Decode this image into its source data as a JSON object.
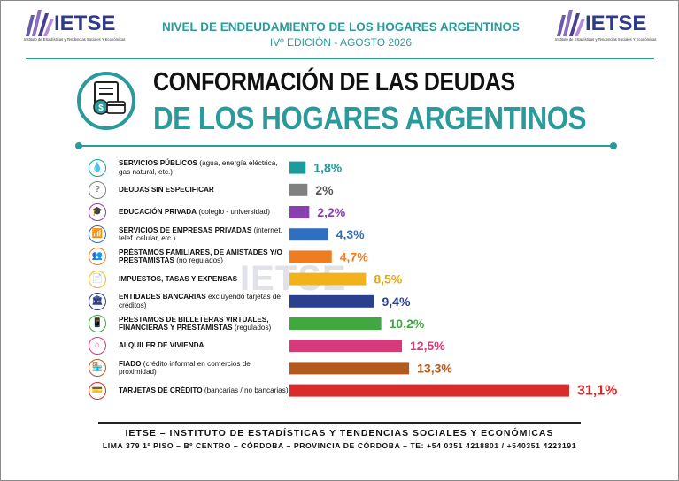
{
  "header": {
    "logo_text": "IETSE",
    "logo_subtitle": "Instituto de Estadísticas y Tendencias Sociales Y Económicas",
    "title": "NIVEL DE ENDEUDAMIENTO DE LOS HOGARES ARGENTINOS",
    "edition": "IVº EDICIÓN - AGOSTO 2026"
  },
  "title": {
    "line1": "CONFORMACIÓN DE LAS DEUDAS",
    "line2": "DE LOS HOGARES ARGENTINOS"
  },
  "watermark": "IETSE",
  "chart_data": {
    "type": "bar",
    "orientation": "horizontal",
    "categories": [
      "SERVICIOS PÚBLICOS (agua, energía eléctrica, gas natural, etc.)",
      "DEUDAS SIN ESPECIFICAR",
      "EDUCACIÓN PRIVADA (colegio - universidad)",
      "SERVICIOS DE EMPRESAS PRIVADAS (internet, telef. celular, etc.)",
      "PRÉSTAMOS FAMILIARES, DE AMISTADES Y/O PRESTAMISTAS (no regulados)",
      "IMPUESTOS, TASAS Y EXPENSAS",
      "ENTIDADES BANCARIAS excluyendo tarjetas de créditos)",
      "PRESTAMOS DE BILLETERAS VIRTUALES, FINANCIERAS Y PRESTAMISTAS (regulados)",
      "ALQUILER DE VIVIENDA",
      "FIADO (crédito informal en comercios de proximidad)",
      "TARJETAS DE CRÉDITO (bancarias / no bancarias)"
    ],
    "values": [
      1.8,
      2,
      2.2,
      4.3,
      4.7,
      8.5,
      9.4,
      10.2,
      12.5,
      13.3,
      31.1
    ],
    "value_labels": [
      "1,8%",
      "2%",
      "2,2%",
      "4,3%",
      "4,7%",
      "8,5%",
      "9,4%",
      "10,2%",
      "12,5%",
      "13,3%",
      "31,1%"
    ],
    "colors": [
      "#1a9c9c",
      "#808080",
      "#8a3fb0",
      "#2f6fbf",
      "#ee7d22",
      "#f2b21c",
      "#2b3f8f",
      "#3fa83f",
      "#d63a7a",
      "#b25a1e",
      "#d92b2b"
    ],
    "label_colors": [
      "#1a9c9c",
      "#555555",
      "#8a3fb0",
      "#2f6fbf",
      "#ee7d22",
      "#e8a813",
      "#2b3f8f",
      "#3fa83f",
      "#d63a7a",
      "#b25a1e",
      "#d92b2b"
    ],
    "xlim": [
      0,
      31.1
    ],
    "grid": false,
    "legend": "none"
  },
  "rows": [
    {
      "main": "SERVICIOS PÚBLICOS",
      "sub": " (agua, energía eléctrica, gas natural, etc.)",
      "icon": "water-drop-icon",
      "glyph": "💧",
      "icon_color": "#1a9c9c"
    },
    {
      "main": "DEUDAS SIN ESPECIFICAR",
      "sub": "",
      "icon": "question-icon",
      "glyph": "?",
      "icon_color": "#808080"
    },
    {
      "main": "EDUCACIÓN PRIVADA",
      "sub": " (colegio - universidad)",
      "icon": "graduation-cap-icon",
      "glyph": "🎓",
      "icon_color": "#8a3fb0"
    },
    {
      "main": "SERVICIOS DE EMPRESAS PRIVADAS",
      "sub": " (internet, telef. celular, etc.)",
      "icon": "wifi-icon",
      "glyph": "📶",
      "icon_color": "#2f6fbf"
    },
    {
      "main": "PRÉSTAMOS FAMILIARES, DE AMISTADES Y/O PRESTAMISTAS",
      "sub": " (no regulados)",
      "icon": "people-icon",
      "glyph": "👥",
      "icon_color": "#ee7d22"
    },
    {
      "main": "IMPUESTOS, TASAS Y EXPENSAS",
      "sub": "",
      "icon": "receipt-icon",
      "glyph": "📄",
      "icon_color": "#f2b21c"
    },
    {
      "main": "ENTIDADES BANCARIAS",
      "sub": " excluyendo tarjetas de créditos)",
      "icon": "bank-icon",
      "glyph": "🏛",
      "icon_color": "#2b3f8f"
    },
    {
      "main": "PRESTAMOS DE BILLETERAS VIRTUALES, FINANCIERAS Y PRESTAMISTAS",
      "sub": " (regulados)",
      "icon": "mobile-wallet-icon",
      "glyph": "📱",
      "icon_color": "#3fa83f"
    },
    {
      "main": "ALQUILER DE VIVIENDA",
      "sub": "",
      "icon": "house-icon",
      "glyph": "⌂",
      "icon_color": "#d63a7a"
    },
    {
      "main": "FIADO",
      "sub": " (crédito informal en comercios de proximidad)",
      "icon": "store-icon",
      "glyph": "🏪",
      "icon_color": "#b25a1e"
    },
    {
      "main": "TARJETAS DE CRÉDITO",
      "sub": " (bancarias / no bancarias)",
      "icon": "credit-card-icon",
      "glyph": "💳",
      "icon_color": "#d92b2b"
    }
  ],
  "footer": {
    "line1": "IETSE – INSTITUTO DE ESTADÍSTICAS Y TENDENCIAS SOCIALES Y ECONÓMICAS",
    "line2": "LIMA 379 1º PISO – Bº CENTRO – CÓRDOBA – PROVINCIA DE CÓRDOBA – TE: +54 0351 4218801 / +540351 4223191"
  }
}
